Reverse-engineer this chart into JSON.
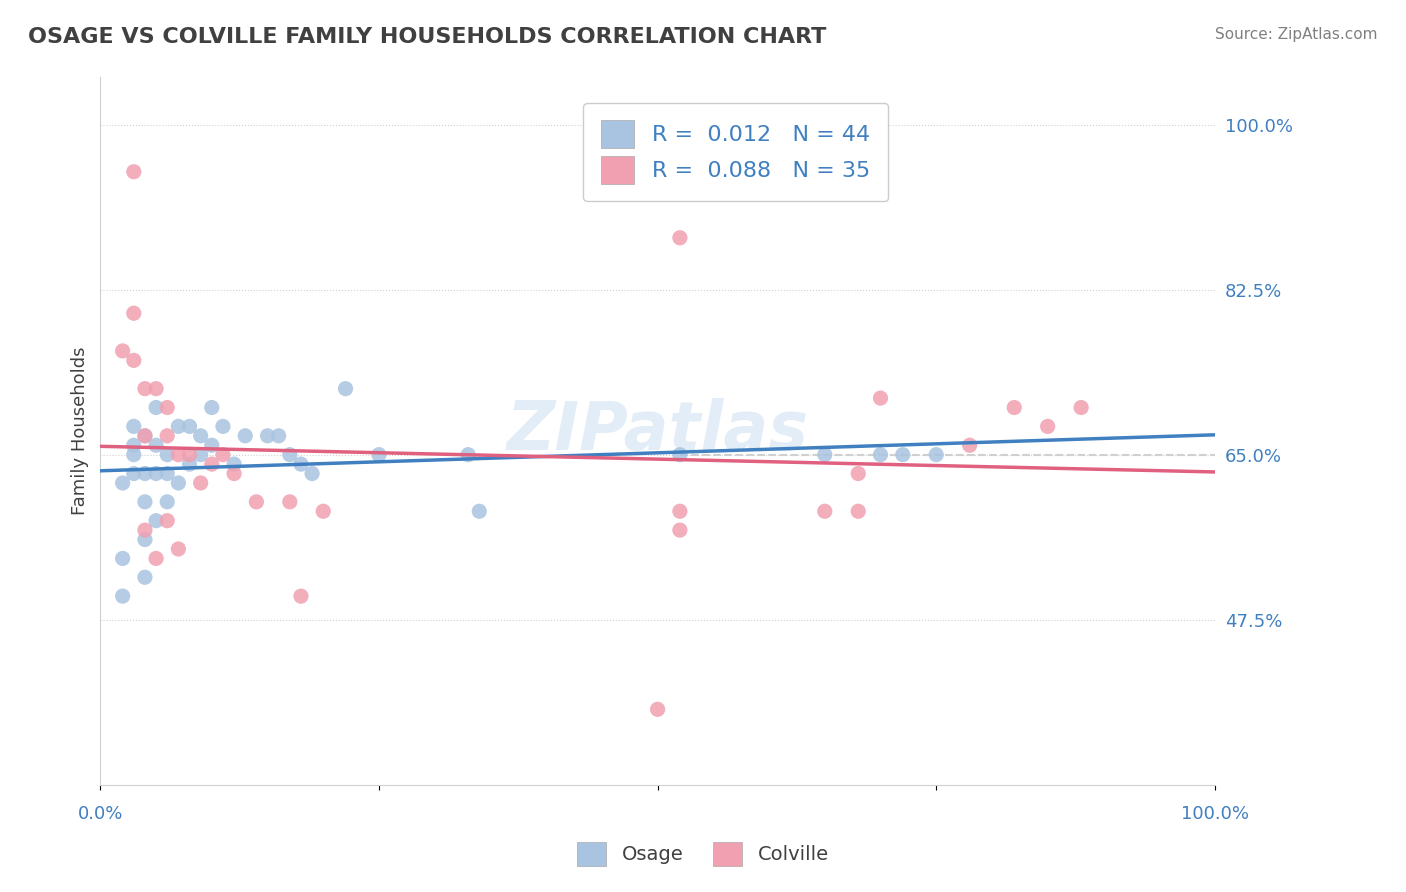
{
  "title": "OSAGE VS COLVILLE FAMILY HOUSEHOLDS CORRELATION CHART",
  "source": "Source: ZipAtlas.com",
  "ylabel": "Family Households",
  "ytick_labels": [
    "100.0%",
    "82.5%",
    "65.0%",
    "47.5%"
  ],
  "ytick_values": [
    1.0,
    0.825,
    0.65,
    0.475
  ],
  "xmin": 0.0,
  "xmax": 1.0,
  "ymin": 0.3,
  "ymax": 1.05,
  "legend_osage_r": "0.012",
  "legend_osage_n": "44",
  "legend_colville_r": "0.088",
  "legend_colville_n": "35",
  "osage_color": "#a8c4e0",
  "colville_color": "#f0a0b0",
  "osage_line_color": "#4080c0",
  "colville_line_color": "#e06080",
  "watermark": "ZIPatlas",
  "osage_x": [
    0.02,
    0.02,
    0.03,
    0.03,
    0.03,
    0.03,
    0.04,
    0.04,
    0.04,
    0.04,
    0.05,
    0.05,
    0.05,
    0.05,
    0.06,
    0.06,
    0.06,
    0.07,
    0.07,
    0.08,
    0.08,
    0.09,
    0.09,
    0.1,
    0.1,
    0.11,
    0.12,
    0.13,
    0.15,
    0.16,
    0.17,
    0.18,
    0.19,
    0.22,
    0.25,
    0.33,
    0.34,
    0.52,
    0.65,
    0.7,
    0.72,
    0.75,
    0.02,
    0.04
  ],
  "osage_y": [
    0.54,
    0.62,
    0.63,
    0.65,
    0.66,
    0.68,
    0.56,
    0.6,
    0.63,
    0.67,
    0.58,
    0.63,
    0.66,
    0.7,
    0.6,
    0.63,
    0.65,
    0.62,
    0.68,
    0.64,
    0.68,
    0.65,
    0.67,
    0.66,
    0.7,
    0.68,
    0.64,
    0.67,
    0.67,
    0.67,
    0.65,
    0.64,
    0.63,
    0.72,
    0.65,
    0.65,
    0.59,
    0.65,
    0.65,
    0.65,
    0.65,
    0.65,
    0.5,
    0.52
  ],
  "colville_x": [
    0.02,
    0.03,
    0.03,
    0.04,
    0.04,
    0.05,
    0.06,
    0.06,
    0.07,
    0.08,
    0.09,
    0.1,
    0.11,
    0.12,
    0.14,
    0.17,
    0.2,
    0.52,
    0.52,
    0.65,
    0.68,
    0.68,
    0.7,
    0.78,
    0.82,
    0.85,
    0.88,
    0.03,
    0.04,
    0.05,
    0.06,
    0.07,
    0.18,
    0.5,
    0.52
  ],
  "colville_y": [
    0.76,
    0.75,
    0.8,
    0.67,
    0.72,
    0.72,
    0.7,
    0.67,
    0.65,
    0.65,
    0.62,
    0.64,
    0.65,
    0.63,
    0.6,
    0.6,
    0.59,
    0.57,
    0.59,
    0.59,
    0.59,
    0.63,
    0.71,
    0.66,
    0.7,
    0.68,
    0.7,
    0.95,
    0.57,
    0.54,
    0.58,
    0.55,
    0.5,
    0.38,
    0.88
  ],
  "grid_color": "#d0d0d0",
  "background_color": "#ffffff",
  "dashed_line_y": 0.65,
  "dashed_line_x_start": 0.52,
  "dashed_line_x_end": 1.0
}
